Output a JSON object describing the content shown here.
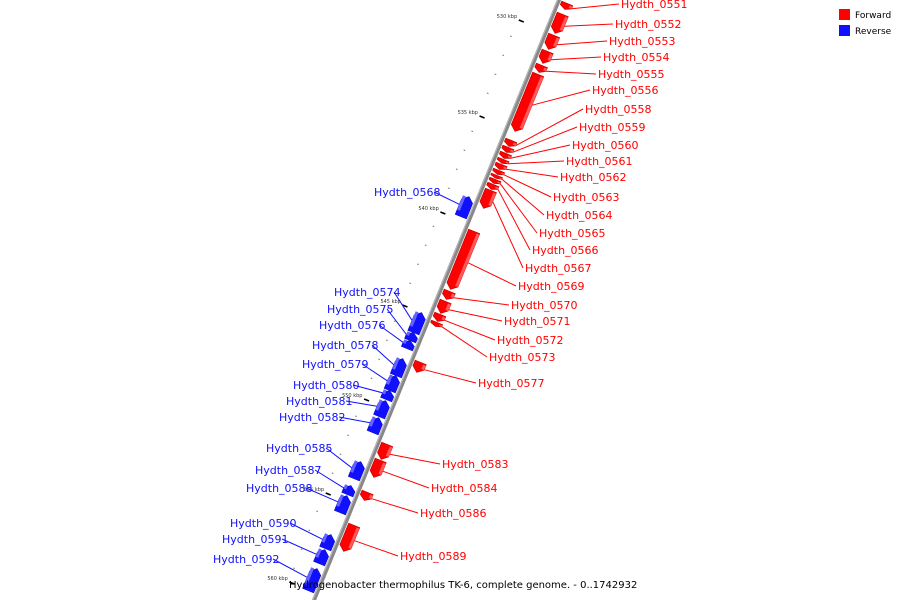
{
  "caption": "Hydrogenobacter thermophilus TK-6, complete genome. - 0..1742932",
  "legend": [
    {
      "label": "Forward",
      "color": "#ff0000"
    },
    {
      "label": "Reverse",
      "color": "#1010ff"
    }
  ],
  "colors": {
    "forward": "#ff0000",
    "reverse": "#1010ff",
    "backbone": "#888888"
  },
  "ticks": [
    {
      "label": "530 kbp"
    },
    {
      "label": "535 kbp"
    },
    {
      "label": "540 kbp"
    },
    {
      "label": "545 kbp"
    },
    {
      "label": "550 kbp"
    },
    {
      "label": "555 kbp"
    },
    {
      "label": "560 kbp"
    }
  ],
  "genes": [
    {
      "name": "Hydth_0551",
      "strand": "forward"
    },
    {
      "name": "Hydth_0552",
      "strand": "forward"
    },
    {
      "name": "Hydth_0553",
      "strand": "forward"
    },
    {
      "name": "Hydth_0554",
      "strand": "forward"
    },
    {
      "name": "Hydth_0555",
      "strand": "forward"
    },
    {
      "name": "Hydth_0556",
      "strand": "forward"
    },
    {
      "name": "Hydth_0558",
      "strand": "forward"
    },
    {
      "name": "Hydth_0559",
      "strand": "forward"
    },
    {
      "name": "Hydth_0560",
      "strand": "forward"
    },
    {
      "name": "Hydth_0561",
      "strand": "forward"
    },
    {
      "name": "Hydth_0562",
      "strand": "forward"
    },
    {
      "name": "Hydth_0563",
      "strand": "forward"
    },
    {
      "name": "Hydth_0564",
      "strand": "forward"
    },
    {
      "name": "Hydth_0565",
      "strand": "forward"
    },
    {
      "name": "Hydth_0566",
      "strand": "forward"
    },
    {
      "name": "Hydth_0567",
      "strand": "forward"
    },
    {
      "name": "Hydth_0568",
      "strand": "reverse"
    },
    {
      "name": "Hydth_0569",
      "strand": "forward"
    },
    {
      "name": "Hydth_0570",
      "strand": "forward"
    },
    {
      "name": "Hydth_0571",
      "strand": "forward"
    },
    {
      "name": "Hydth_0572",
      "strand": "forward"
    },
    {
      "name": "Hydth_0573",
      "strand": "forward"
    },
    {
      "name": "Hydth_0574",
      "strand": "reverse"
    },
    {
      "name": "Hydth_0575",
      "strand": "reverse"
    },
    {
      "name": "Hydth_0576",
      "strand": "reverse"
    },
    {
      "name": "Hydth_0577",
      "strand": "forward"
    },
    {
      "name": "Hydth_0578",
      "strand": "reverse"
    },
    {
      "name": "Hydth_0579",
      "strand": "reverse"
    },
    {
      "name": "Hydth_0580",
      "strand": "reverse"
    },
    {
      "name": "Hydth_0581",
      "strand": "reverse"
    },
    {
      "name": "Hydth_0582",
      "strand": "reverse"
    },
    {
      "name": "Hydth_0583",
      "strand": "forward"
    },
    {
      "name": "Hydth_0584",
      "strand": "forward"
    },
    {
      "name": "Hydth_0585",
      "strand": "reverse"
    },
    {
      "name": "Hydth_0586",
      "strand": "forward"
    },
    {
      "name": "Hydth_0587",
      "strand": "reverse"
    },
    {
      "name": "Hydth_0588",
      "strand": "reverse"
    },
    {
      "name": "Hydth_0589",
      "strand": "forward"
    },
    {
      "name": "Hydth_0590",
      "strand": "reverse"
    },
    {
      "name": "Hydth_0591",
      "strand": "reverse"
    },
    {
      "name": "Hydth_0592",
      "strand": "reverse"
    }
  ]
}
